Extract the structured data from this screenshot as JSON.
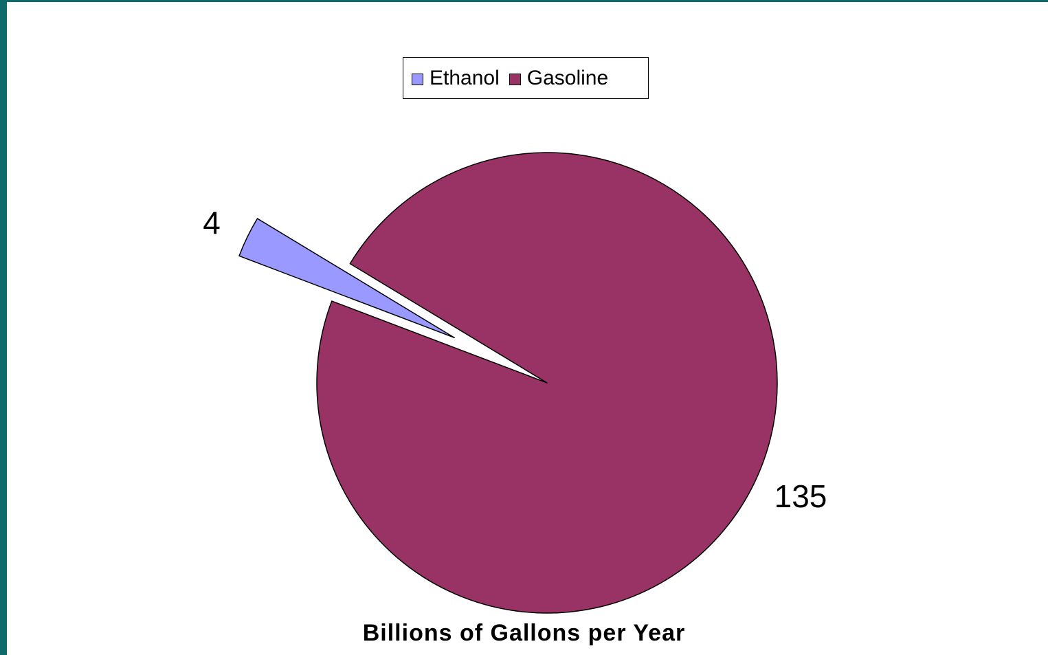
{
  "chart_data": {
    "type": "pie",
    "categories": [
      "Ethanol",
      "Gasoline"
    ],
    "values": [
      4,
      135
    ],
    "data_labels": [
      "4",
      "135"
    ],
    "colors": [
      "#9999ff",
      "#993366"
    ],
    "xlabel": "Billions of Gallons per Year",
    "legend": {
      "position": "top",
      "entries": [
        "Ethanol",
        "Gasoline"
      ]
    },
    "exploded": [
      "Ethanol"
    ]
  },
  "colors": {
    "background": "#0f6b6b",
    "plot_background": "#ffffff"
  }
}
